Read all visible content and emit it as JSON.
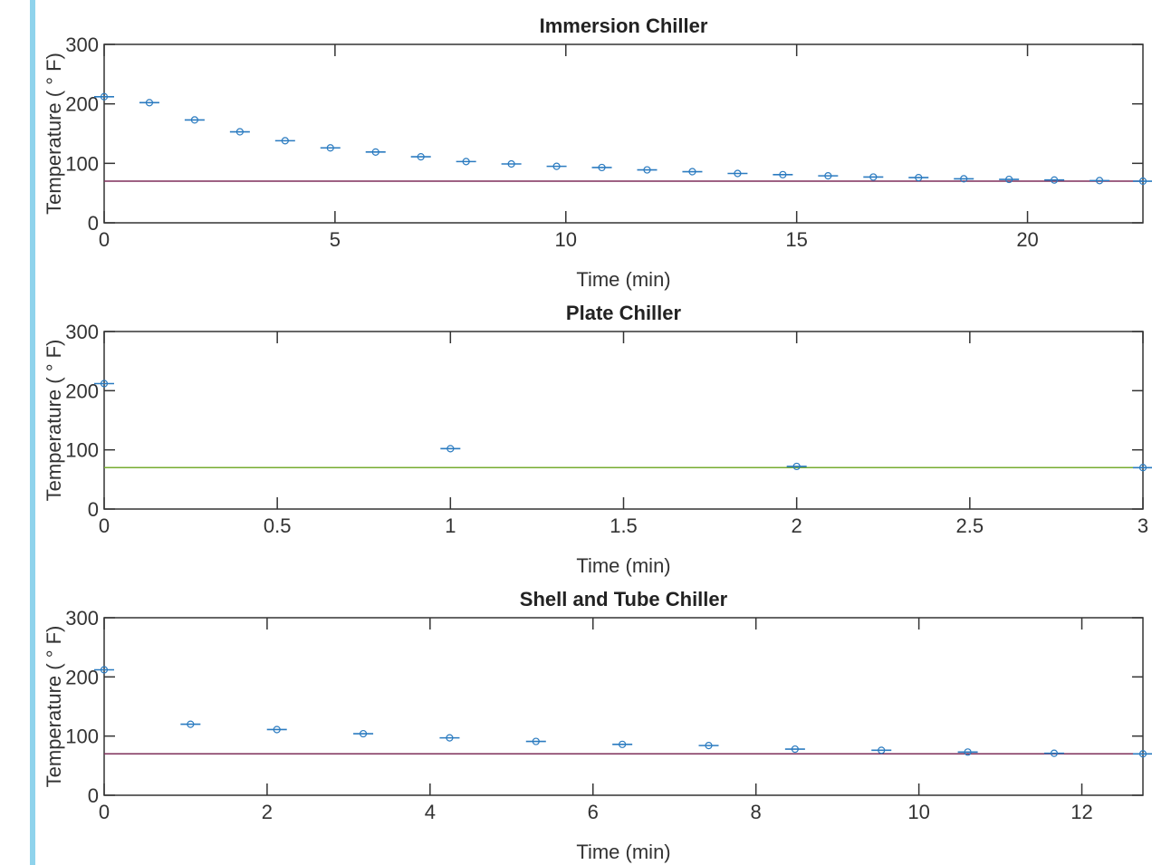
{
  "colors": {
    "accent_bar": "#8fd3ec",
    "marker": "#2b7bc0",
    "axis": "#333333"
  },
  "chart_data": [
    {
      "type": "scatter",
      "title": "Immersion Chiller",
      "xlabel": "Time (min)",
      "ylabel": "Temperature ( ° F)",
      "xlim": [
        0,
        22.5
      ],
      "ylim": [
        0,
        300
      ],
      "xticks": [
        0,
        5,
        10,
        15,
        20
      ],
      "yticks": [
        0,
        100,
        200,
        300
      ],
      "reference_value": 70,
      "reference_color": "#7e2f5a",
      "grid": false,
      "x": [
        0,
        0.98,
        1.96,
        2.94,
        3.92,
        4.9,
        5.88,
        6.86,
        7.84,
        8.82,
        9.8,
        10.78,
        11.76,
        12.74,
        13.72,
        14.7,
        15.68,
        16.66,
        17.64,
        18.62,
        19.6,
        20.58,
        21.56,
        22.5
      ],
      "y": [
        212,
        202,
        173,
        153,
        138,
        126,
        119,
        111,
        103,
        99,
        95,
        93,
        89,
        86,
        83,
        81,
        79,
        77,
        76,
        74,
        73,
        72,
        71,
        70
      ]
    },
    {
      "type": "scatter",
      "title": "Plate Chiller",
      "xlabel": "Time (min)",
      "ylabel": "Temperature ( ° F)",
      "xlim": [
        0,
        3
      ],
      "ylim": [
        0,
        300
      ],
      "xticks": [
        0,
        0.5,
        1,
        1.5,
        2,
        2.5,
        3
      ],
      "yticks": [
        0,
        100,
        200,
        300
      ],
      "reference_value": 70,
      "reference_color": "#77ac30",
      "grid": false,
      "x": [
        0,
        1,
        2,
        3
      ],
      "y": [
        212,
        102,
        72,
        70
      ]
    },
    {
      "type": "scatter",
      "title": "Shell and Tube Chiller",
      "xlabel": "Time (min)",
      "ylabel": "Temperature ( ° F)",
      "xlim": [
        0,
        12.75
      ],
      "ylim": [
        0,
        300
      ],
      "xticks": [
        0,
        2,
        4,
        6,
        8,
        10,
        12
      ],
      "yticks": [
        0,
        100,
        200,
        300
      ],
      "reference_value": 70,
      "reference_color": "#7e2f5a",
      "grid": false,
      "x": [
        0,
        1.06,
        2.12,
        3.18,
        4.24,
        5.3,
        6.36,
        7.42,
        8.48,
        9.54,
        10.6,
        11.66,
        12.75
      ],
      "y": [
        212,
        120,
        111,
        104,
        97,
        91,
        86,
        84,
        78,
        76,
        73,
        71,
        70
      ]
    }
  ]
}
